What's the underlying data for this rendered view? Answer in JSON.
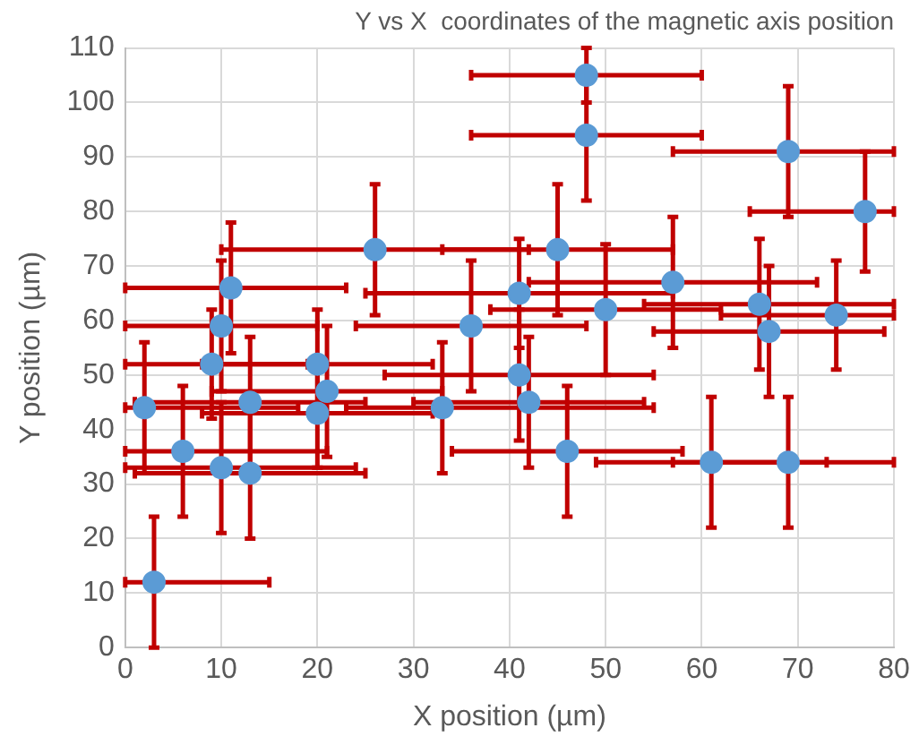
{
  "chart_data": {
    "type": "scatter",
    "title": "Y vs X  coordinates of the magnetic axis position",
    "xlabel": "X position (µm)",
    "ylabel": "Y position (µm)",
    "x": [
      3,
      2,
      6,
      10,
      13,
      13,
      9,
      10,
      11,
      20,
      20,
      21,
      26,
      33,
      36,
      41,
      41,
      42,
      45,
      46,
      48,
      48,
      50,
      57,
      61,
      66,
      67,
      69,
      69,
      74,
      77
    ],
    "series": [
      {
        "color": "#5b9bd5",
        "values": [
          12,
          44,
          36,
          33,
          32,
          45,
          52,
          59,
          66,
          52,
          43,
          47,
          73,
          44,
          59,
          65,
          50,
          45,
          73,
          36,
          105,
          94,
          62,
          67,
          34,
          63,
          58,
          91,
          34,
          61,
          80
        ],
        "errors": [
          12,
          12,
          12,
          12,
          12,
          12,
          10,
          12,
          12,
          10,
          10,
          12,
          12,
          12,
          12,
          10,
          12,
          12,
          12,
          12,
          5,
          12,
          12,
          12,
          12,
          12,
          12,
          12,
          12,
          10,
          11
        ],
        "xerrors": [
          [
            0,
            15
          ],
          [
            0,
            18
          ],
          [
            0,
            21
          ],
          [
            0,
            24
          ],
          [
            1,
            25
          ],
          12,
          [
            0,
            19
          ],
          [
            0,
            20
          ],
          [
            0,
            23
          ],
          12,
          12,
          12,
          16,
          [
            23,
            55
          ],
          12,
          16,
          14,
          12,
          12,
          12,
          12,
          12,
          12,
          15,
          12,
          [
            54,
            80
          ],
          12,
          [
            57,
            80
          ],
          [
            57,
            80
          ],
          [
            62,
            80
          ],
          [
            65,
            80
          ]
        ]
      }
    ],
    "xlim": [
      0,
      80
    ],
    "xticks": [
      0,
      10,
      20,
      30,
      40,
      50,
      60,
      70,
      80
    ],
    "ylim": [
      0,
      110
    ],
    "yticks": [
      0,
      10,
      20,
      30,
      40,
      50,
      60,
      70,
      80,
      90,
      100,
      110
    ],
    "grid": true,
    "legend": false,
    "marker": "circle"
  }
}
